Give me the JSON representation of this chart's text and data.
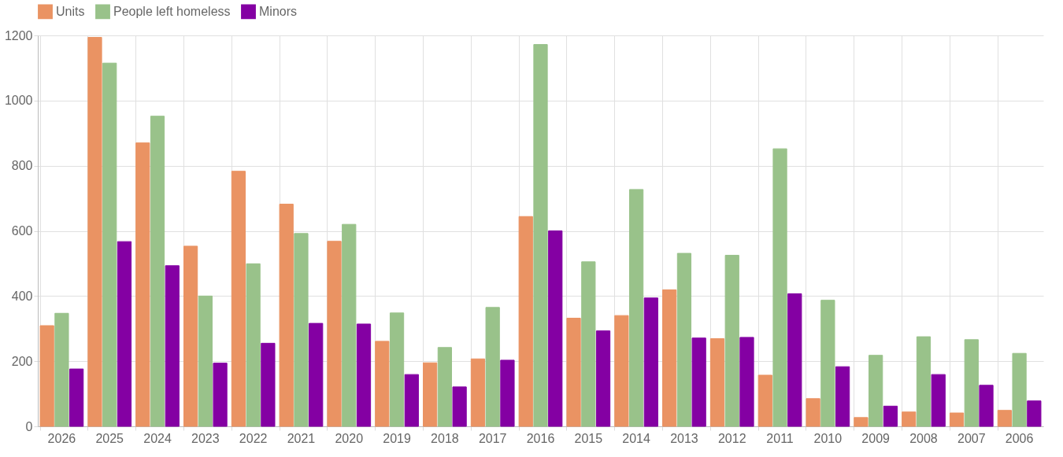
{
  "chart_data": {
    "type": "bar",
    "categories": [
      "2026",
      "2025",
      "2024",
      "2023",
      "2022",
      "2021",
      "2020",
      "2019",
      "2018",
      "2017",
      "2016",
      "2015",
      "2014",
      "2013",
      "2012",
      "2011",
      "2010",
      "2009",
      "2008",
      "2007",
      "2006"
    ],
    "series": [
      {
        "name": "Units",
        "color": "#ea9363",
        "values": [
          309,
          1194,
          870,
          553,
          783,
          682,
          568,
          261,
          195,
          207,
          644,
          332,
          340,
          419,
          269,
          157,
          85,
          27,
          44,
          41,
          49
        ]
      },
      {
        "name": "People left homeless",
        "color": "#99c28a",
        "values": [
          347,
          1115,
          952,
          400,
          499,
          592,
          620,
          348,
          242,
          365,
          1172,
          505,
          727,
          531,
          525,
          852,
          387,
          218,
          275,
          266,
          224
        ]
      },
      {
        "name": "Minors",
        "color": "#8400a3",
        "values": [
          176,
          567,
          493,
          194,
          255,
          316,
          314,
          159,
          121,
          203,
          600,
          293,
          394,
          271,
          273,
          407,
          183,
          62,
          159,
          126,
          78
        ]
      }
    ],
    "ylim": [
      0,
      1200
    ],
    "yticks": [
      0,
      200,
      400,
      600,
      800,
      1000,
      1200
    ],
    "grid": true,
    "legend": "top"
  }
}
